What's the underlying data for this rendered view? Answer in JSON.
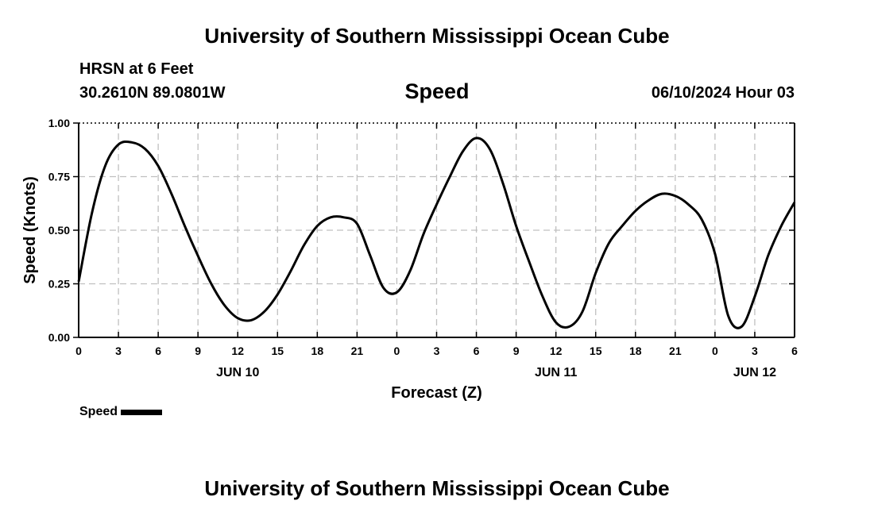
{
  "header": {
    "title": "University of Southern Mississippi Ocean Cube",
    "station": "HRSN at 6 Feet",
    "coords": "30.2610N  89.0801W",
    "parameter": "Speed",
    "timestamp": "06/10/2024 Hour 03"
  },
  "footer": {
    "title": "University of Southern Mississippi Ocean Cube"
  },
  "legend": {
    "label": "Speed",
    "color": "#000000"
  },
  "chart_data": {
    "type": "line",
    "title": "Speed",
    "xlabel": "Forecast (Z)",
    "ylabel": "Speed (Knots)",
    "x_unit": "hours from 2024-06-10 00Z",
    "xlim": [
      0,
      54
    ],
    "ylim": [
      0,
      1
    ],
    "grid": true,
    "legend_position": "bottom-left",
    "x_ticks": [
      {
        "x": 0,
        "label": "0"
      },
      {
        "x": 3,
        "label": "3"
      },
      {
        "x": 6,
        "label": "6"
      },
      {
        "x": 9,
        "label": "9"
      },
      {
        "x": 12,
        "label": "12"
      },
      {
        "x": 15,
        "label": "15"
      },
      {
        "x": 18,
        "label": "18"
      },
      {
        "x": 21,
        "label": "21"
      },
      {
        "x": 24,
        "label": "0"
      },
      {
        "x": 27,
        "label": "3"
      },
      {
        "x": 30,
        "label": "6"
      },
      {
        "x": 33,
        "label": "9"
      },
      {
        "x": 36,
        "label": "12"
      },
      {
        "x": 39,
        "label": "15"
      },
      {
        "x": 42,
        "label": "18"
      },
      {
        "x": 45,
        "label": "21"
      },
      {
        "x": 48,
        "label": "0"
      },
      {
        "x": 51,
        "label": "3"
      },
      {
        "x": 54,
        "label": "6"
      }
    ],
    "day_labels": [
      {
        "x": 12,
        "label": "JUN 10"
      },
      {
        "x": 36,
        "label": "JUN 11"
      },
      {
        "x": 51,
        "label": "JUN 12"
      }
    ],
    "y_ticks": [
      {
        "y": 0,
        "label": "0.00"
      },
      {
        "y": 0.25,
        "label": "0.25"
      },
      {
        "y": 0.5,
        "label": "0.50"
      },
      {
        "y": 0.75,
        "label": "0.75"
      },
      {
        "y": 1,
        "label": "1.00"
      }
    ],
    "series": [
      {
        "name": "Speed",
        "color": "#000000",
        "x": [
          0,
          1,
          2,
          3,
          4,
          5,
          6,
          7,
          8,
          9,
          10,
          11,
          12,
          13,
          14,
          15,
          16,
          17,
          18,
          19,
          20,
          21,
          22,
          23,
          24,
          25,
          26,
          27,
          28,
          29,
          30,
          31,
          32,
          33,
          34,
          35,
          36,
          37,
          38,
          39,
          40,
          41,
          42,
          43,
          44,
          45,
          46,
          47,
          48,
          49,
          50,
          51,
          52,
          53,
          54
        ],
        "y": [
          0.26,
          0.58,
          0.8,
          0.9,
          0.91,
          0.88,
          0.8,
          0.67,
          0.52,
          0.38,
          0.25,
          0.15,
          0.09,
          0.08,
          0.12,
          0.2,
          0.31,
          0.43,
          0.52,
          0.56,
          0.56,
          0.53,
          0.38,
          0.23,
          0.21,
          0.31,
          0.48,
          0.62,
          0.75,
          0.87,
          0.93,
          0.88,
          0.72,
          0.52,
          0.35,
          0.19,
          0.07,
          0.05,
          0.12,
          0.3,
          0.44,
          0.52,
          0.59,
          0.64,
          0.67,
          0.66,
          0.62,
          0.55,
          0.39,
          0.1,
          0.05,
          0.19,
          0.38,
          0.52,
          0.63
        ]
      }
    ]
  }
}
